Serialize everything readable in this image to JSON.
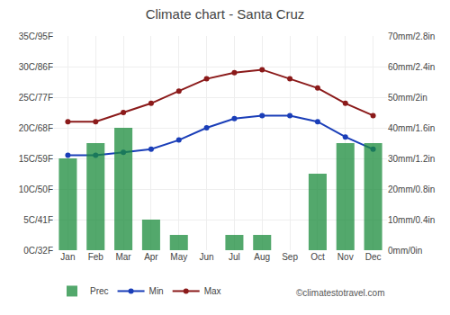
{
  "chart_data": {
    "type": "bar",
    "title": "Climate chart - Santa Cruz",
    "categories": [
      "Jan",
      "Feb",
      "Mar",
      "Apr",
      "May",
      "Jun",
      "Jul",
      "Aug",
      "Sep",
      "Oct",
      "Nov",
      "Dec"
    ],
    "series": [
      {
        "name": "Prec",
        "type": "bar",
        "axis": "y2",
        "color": "#1a8c3c",
        "values": [
          30,
          35,
          40,
          10,
          5,
          0,
          5,
          5,
          0,
          25,
          35,
          35
        ]
      },
      {
        "name": "Min",
        "type": "line",
        "marker": "circle",
        "color": "#1a3eb8",
        "values": [
          15.5,
          15.5,
          16.0,
          16.5,
          18.0,
          20.0,
          21.5,
          22.0,
          22.0,
          21.0,
          18.5,
          16.5
        ]
      },
      {
        "name": "Max",
        "type": "line",
        "marker": "circle",
        "color": "#8b1a1a",
        "values": [
          21.0,
          21.0,
          22.5,
          24.0,
          26.0,
          28.0,
          29.0,
          29.5,
          28.0,
          26.5,
          24.0,
          22.0
        ]
      }
    ],
    "ylim": [
      0,
      35
    ],
    "yticks": [
      {
        "value": 0,
        "label": "0C/32F"
      },
      {
        "value": 5,
        "label": "5C/41F"
      },
      {
        "value": 10,
        "label": "10C/50F"
      },
      {
        "value": 15,
        "label": "15C/59F"
      },
      {
        "value": 20,
        "label": "20C/68F"
      },
      {
        "value": 25,
        "label": "25C/77F"
      },
      {
        "value": 30,
        "label": "30C/86F"
      },
      {
        "value": 35,
        "label": "35C/95F"
      }
    ],
    "y2lim": [
      0,
      70
    ],
    "y2ticks": [
      {
        "value": 0,
        "label": "0mm/0in"
      },
      {
        "value": 10,
        "label": "10mm/0.4in"
      },
      {
        "value": 20,
        "label": "20mm/0.8in"
      },
      {
        "value": 30,
        "label": "30mm/1.2in"
      },
      {
        "value": 40,
        "label": "40mm/1.6in"
      },
      {
        "value": 50,
        "label": "50mm/2in"
      },
      {
        "value": 60,
        "label": "60mm/2.4in"
      },
      {
        "value": 70,
        "label": "70mm/2.8in"
      }
    ],
    "grid": true,
    "legend": "bottom left",
    "annotations": [
      "©climatestotravel.com"
    ]
  }
}
